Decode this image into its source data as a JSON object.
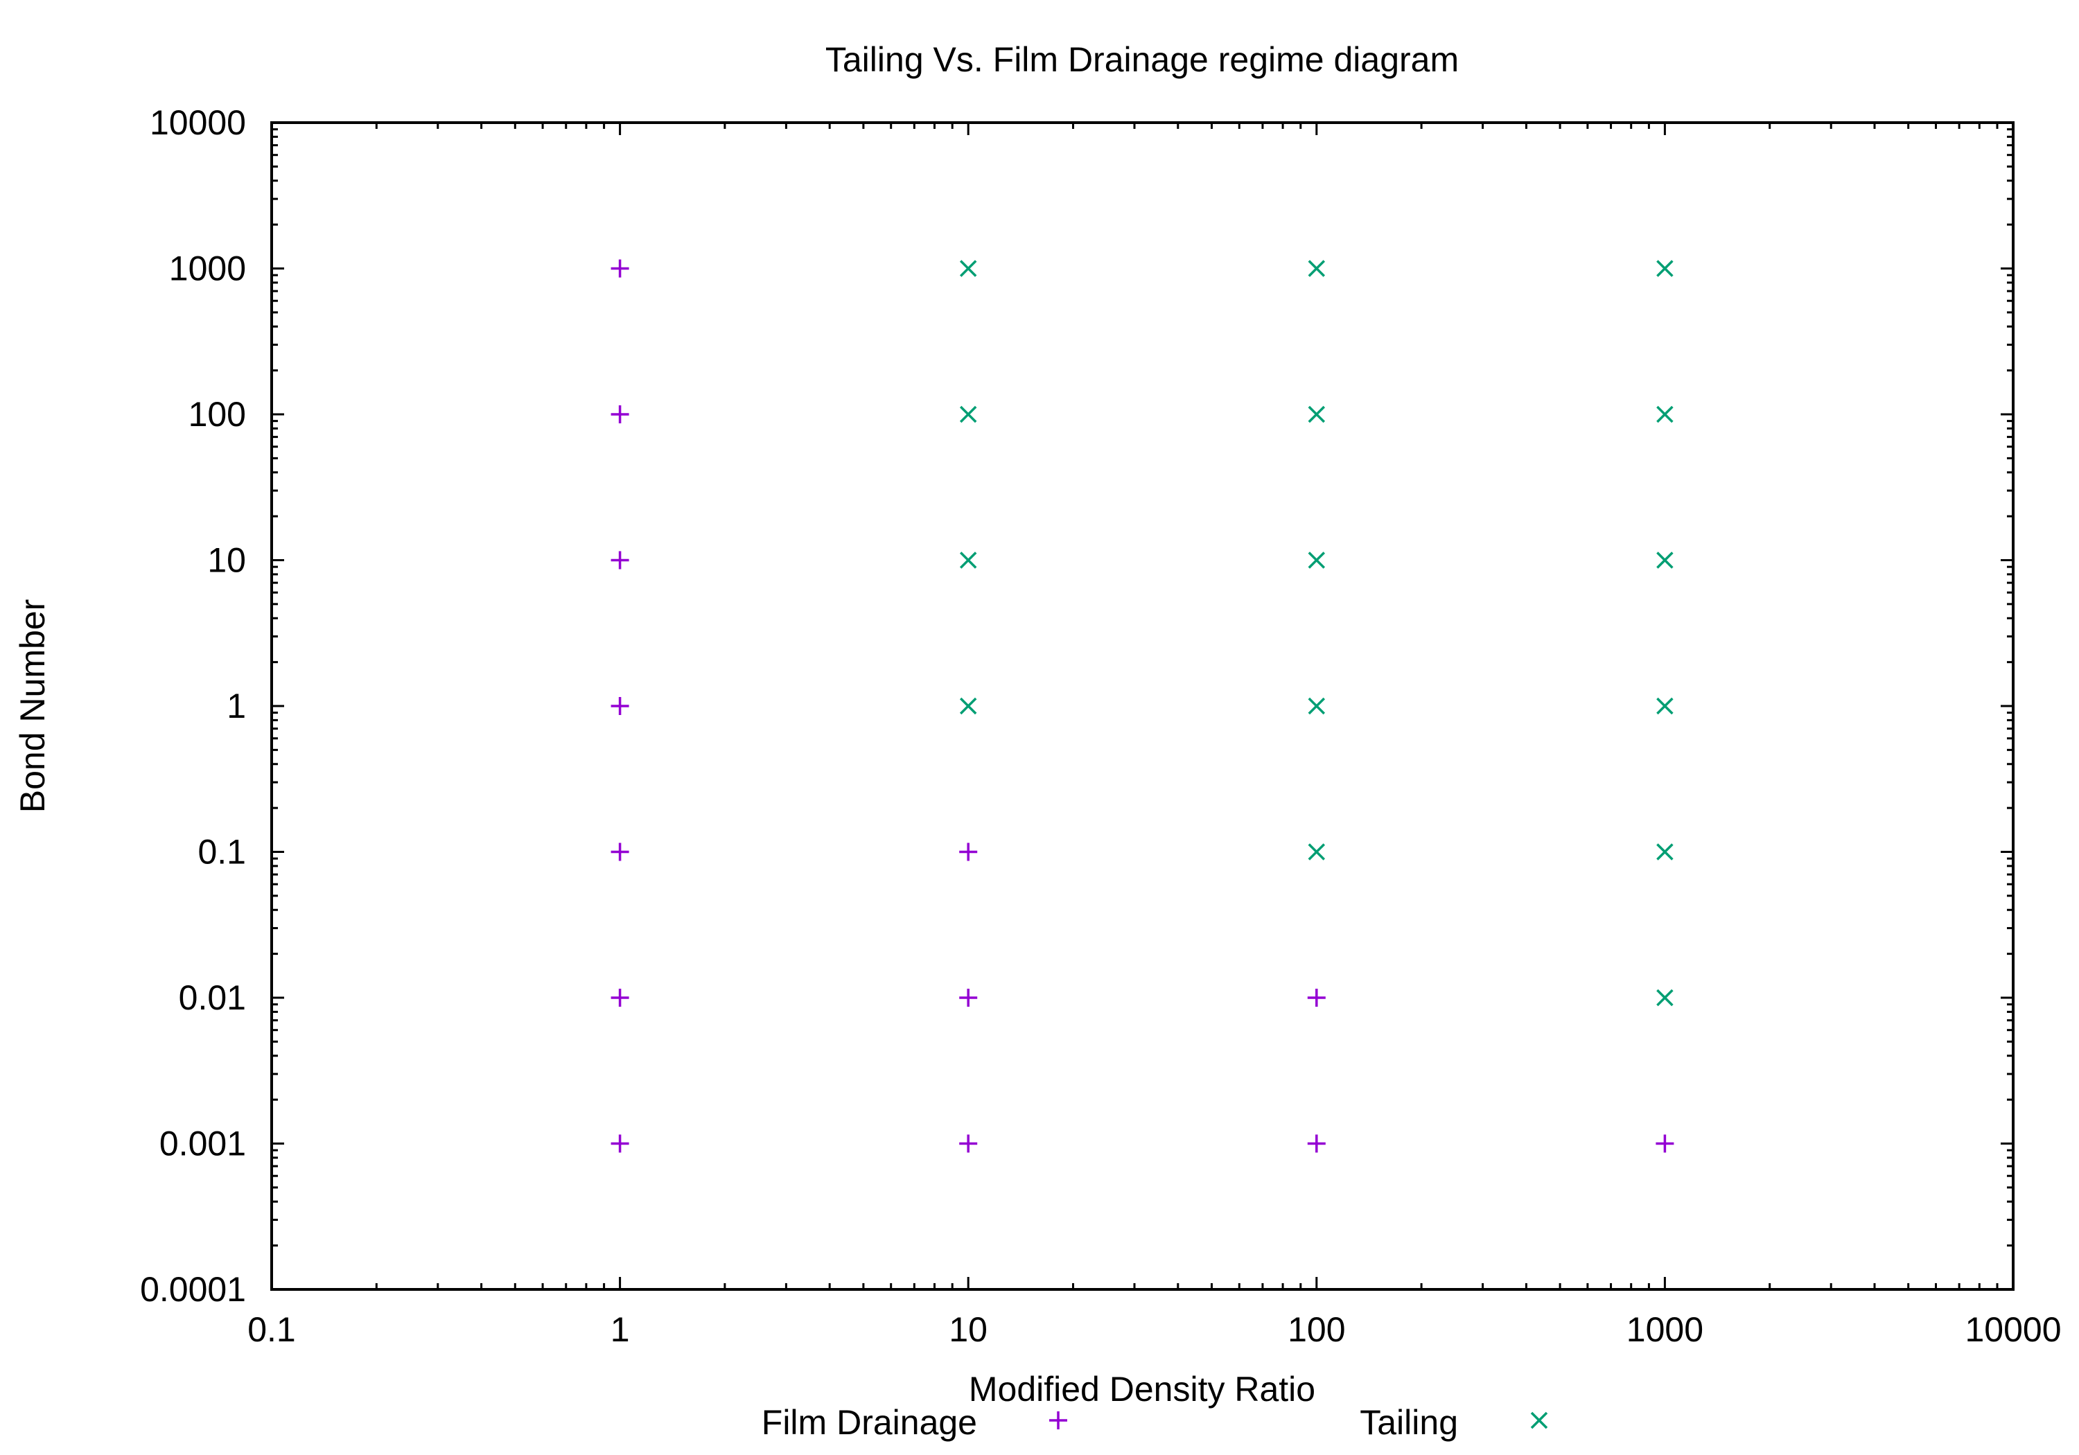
{
  "chart_data": {
    "type": "scatter",
    "title": "Tailing Vs. Film Drainage regime diagram",
    "xlabel": "Modified Density Ratio",
    "ylabel": "Bond Number",
    "xscale": "log",
    "yscale": "log",
    "xlim": [
      0.1,
      10000
    ],
    "ylim": [
      0.0001,
      10000
    ],
    "x_ticks": [
      "0.1",
      "1",
      "10",
      "100",
      "1000",
      "10000"
    ],
    "y_ticks": [
      "0.0001",
      "0.001",
      "0.01",
      "0.1",
      "1",
      "10",
      "100",
      "1000",
      "10000"
    ],
    "grid": false,
    "legend_position": "bottom",
    "series": [
      {
        "name": "Film Drainage",
        "marker": "plus",
        "color": "#9400d3",
        "points": [
          {
            "x": 1,
            "y": 1000
          },
          {
            "x": 1,
            "y": 100
          },
          {
            "x": 1,
            "y": 10
          },
          {
            "x": 1,
            "y": 1
          },
          {
            "x": 1,
            "y": 0.1
          },
          {
            "x": 1,
            "y": 0.01
          },
          {
            "x": 1,
            "y": 0.001
          },
          {
            "x": 10,
            "y": 0.1
          },
          {
            "x": 10,
            "y": 0.01
          },
          {
            "x": 10,
            "y": 0.001
          },
          {
            "x": 100,
            "y": 0.01
          },
          {
            "x": 100,
            "y": 0.001
          },
          {
            "x": 1000,
            "y": 0.001
          }
        ]
      },
      {
        "name": "Tailing",
        "marker": "cross",
        "color": "#009e73",
        "points": [
          {
            "x": 10,
            "y": 1000
          },
          {
            "x": 10,
            "y": 100
          },
          {
            "x": 10,
            "y": 10
          },
          {
            "x": 10,
            "y": 1
          },
          {
            "x": 100,
            "y": 1000
          },
          {
            "x": 100,
            "y": 100
          },
          {
            "x": 100,
            "y": 10
          },
          {
            "x": 100,
            "y": 1
          },
          {
            "x": 100,
            "y": 0.1
          },
          {
            "x": 1000,
            "y": 1000
          },
          {
            "x": 1000,
            "y": 100
          },
          {
            "x": 1000,
            "y": 10
          },
          {
            "x": 1000,
            "y": 1
          },
          {
            "x": 1000,
            "y": 0.1
          },
          {
            "x": 1000,
            "y": 0.01
          }
        ]
      }
    ]
  }
}
